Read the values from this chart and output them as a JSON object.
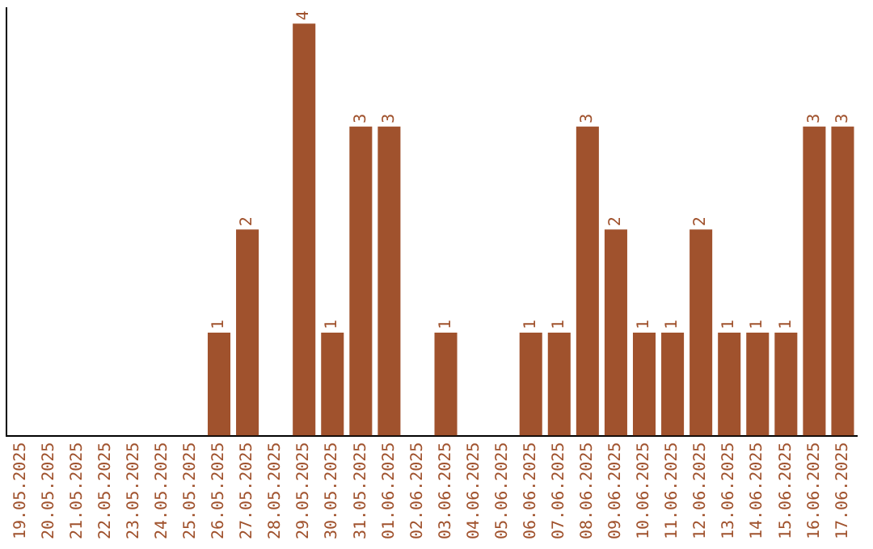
{
  "chart_data": {
    "type": "bar",
    "categories": [
      "19.05.2025",
      "20.05.2025",
      "21.05.2025",
      "22.05.2025",
      "23.05.2025",
      "24.05.2025",
      "25.05.2025",
      "26.05.2025",
      "27.05.2025",
      "28.05.2025",
      "29.05.2025",
      "30.05.2025",
      "31.05.2025",
      "01.06.2025",
      "02.06.2025",
      "03.06.2025",
      "04.06.2025",
      "05.06.2025",
      "06.06.2025",
      "07.06.2025",
      "08.06.2025",
      "09.06.2025",
      "10.06.2025",
      "11.06.2025",
      "12.06.2025",
      "13.06.2025",
      "14.06.2025",
      "15.06.2025",
      "16.06.2025",
      "17.06.2025"
    ],
    "values": [
      0,
      0,
      0,
      0,
      0,
      0,
      0,
      1,
      2,
      0,
      4,
      1,
      3,
      3,
      0,
      1,
      0,
      0,
      1,
      1,
      3,
      2,
      1,
      1,
      2,
      1,
      1,
      1,
      3,
      3
    ],
    "value_labels": [
      null,
      null,
      null,
      null,
      null,
      null,
      null,
      "1",
      "2",
      null,
      "4",
      "1",
      "3",
      "3",
      null,
      "1",
      null,
      null,
      "1",
      "1",
      "3",
      "2",
      "1",
      "1",
      "2",
      "1",
      "1",
      "1",
      "3",
      "3"
    ],
    "color": "#a0522d",
    "ylim": [
      0,
      4.15
    ],
    "tick_labels": "x",
    "grid": false,
    "legend": false
  }
}
